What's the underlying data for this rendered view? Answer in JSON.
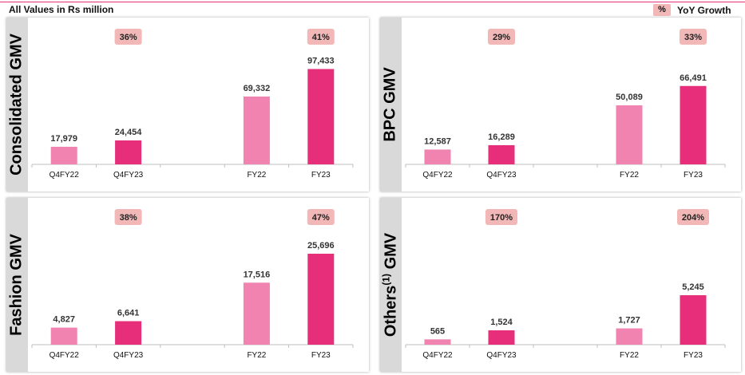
{
  "header": {
    "units": "All Values in Rs million",
    "legend_symbol": "%",
    "legend_label": "YoY Growth"
  },
  "colors": {
    "prior": "#f083b0",
    "current": "#e62e7a",
    "growth_badge": "#f2b8b8",
    "accent_line": "#e8307a"
  },
  "chart_data": [
    {
      "type": "bar",
      "title": "Consolidated GMV",
      "categories": [
        "Q4FY22",
        "Q4FY23",
        "FY22",
        "FY23"
      ],
      "values": [
        17979,
        24454,
        69332,
        97433
      ],
      "labels": [
        "17,979",
        "24,454",
        "69,332",
        "97,433"
      ],
      "growth": [
        "36%",
        "41%"
      ],
      "ylim": [
        0,
        106000
      ]
    },
    {
      "type": "bar",
      "title": "BPC GMV",
      "categories": [
        "Q4FY22",
        "Q4FY23",
        "FY22",
        "FY23"
      ],
      "values": [
        12587,
        16289,
        50089,
        66491
      ],
      "labels": [
        "12,587",
        "16,289",
        "50,089",
        "66,491"
      ],
      "growth": [
        "29%",
        "33%"
      ],
      "ylim": [
        0,
        88000
      ]
    },
    {
      "type": "bar",
      "title": "Fashion GMV",
      "categories": [
        "Q4FY22",
        "Q4FY23",
        "FY22",
        "FY23"
      ],
      "values": [
        4827,
        6641,
        17516,
        25696
      ],
      "labels": [
        "4,827",
        "6,641",
        "17,516",
        "25,696"
      ],
      "growth": [
        "38%",
        "47%"
      ],
      "ylim": [
        0,
        29300
      ]
    },
    {
      "type": "bar",
      "title": "Others",
      "title_sup": "(1)",
      "title_suffix": " GMV",
      "categories": [
        "Q4FY22",
        "Q4FY23",
        "FY22",
        "FY23"
      ],
      "values": [
        565,
        1524,
        1727,
        5245
      ],
      "labels": [
        "565",
        "1,524",
        "1,727",
        "5,245"
      ],
      "growth": [
        "170%",
        "204%"
      ],
      "ylim": [
        0,
        11000
      ]
    }
  ]
}
